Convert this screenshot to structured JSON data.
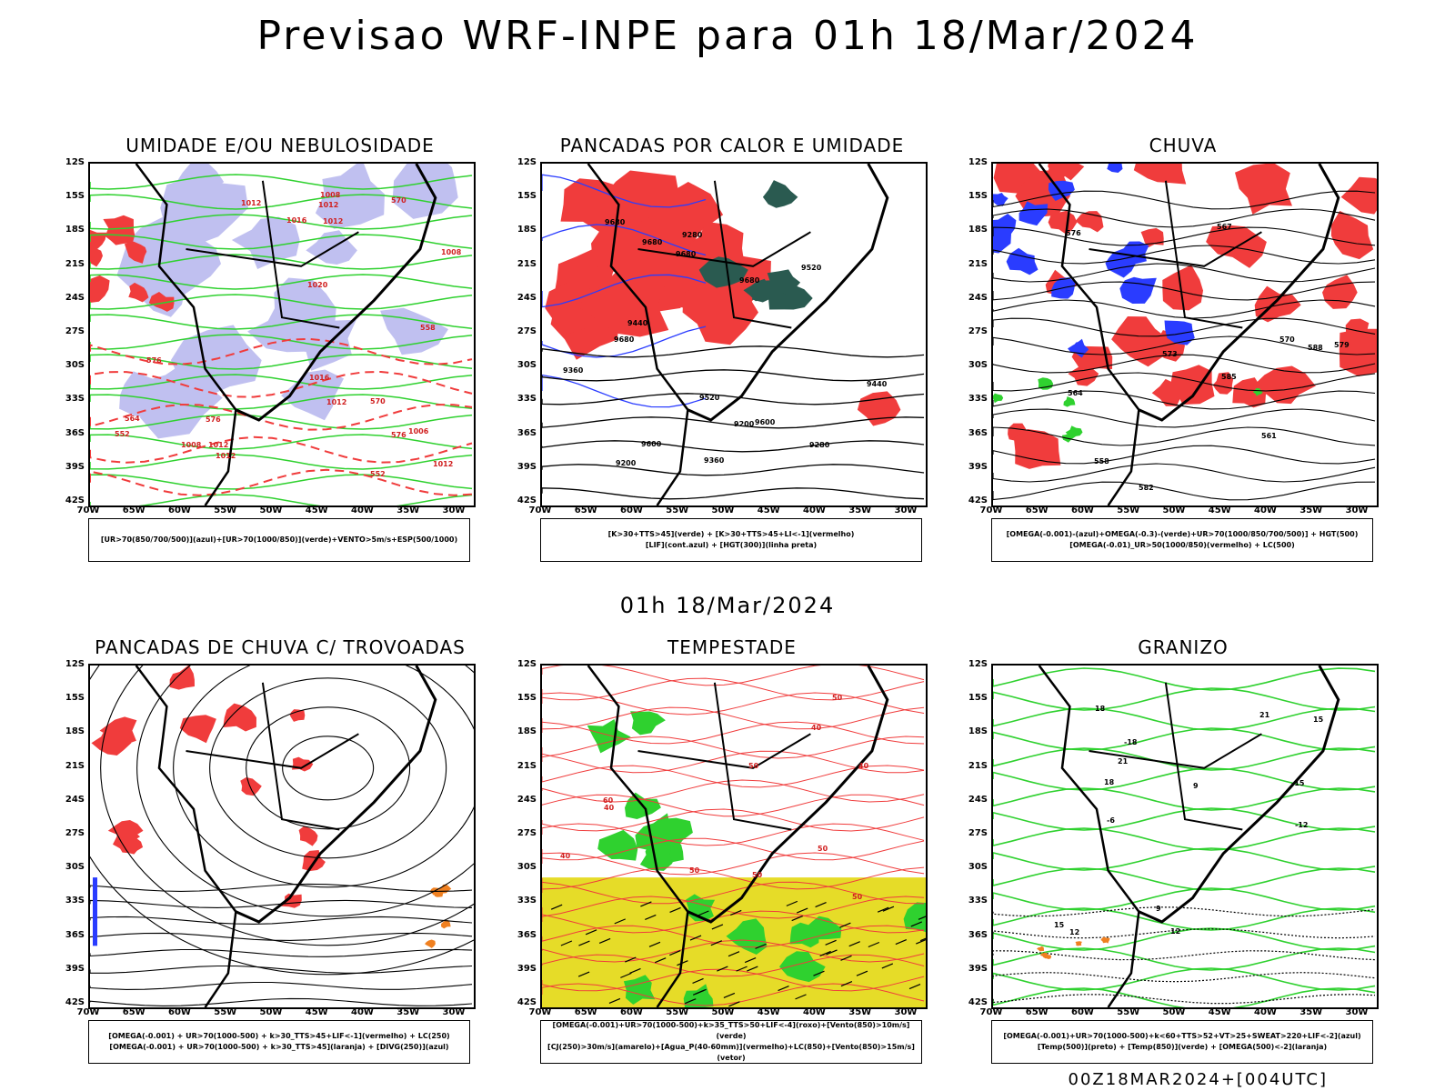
{
  "title": "Previsao WRF-INPE  para 01h 18/Mar/2024",
  "subtitle": "01h 18/Mar/2024",
  "footer": "00Z18MAR2024+[004UTC]",
  "axes": {
    "lats": [
      "12S",
      "15S",
      "18S",
      "21S",
      "24S",
      "27S",
      "30S",
      "33S",
      "36S",
      "39S",
      "42S"
    ],
    "lons": [
      "70W",
      "65W",
      "60W",
      "55W",
      "50W",
      "45W",
      "40W",
      "35W",
      "30W"
    ]
  },
  "panels": [
    {
      "title": "UMIDADE E/OU NEBULOSIDADE",
      "legend": [
        "[UR>70(850/700/500)](azul)+[UR>70(1000/850)](verde)+VENTO>5m/s+ESP(500/1000)"
      ],
      "labels": [
        "1012",
        "1012",
        "1012",
        "1012",
        "1012",
        "1012",
        "1012",
        "1016",
        "1016",
        "1020",
        "1008",
        "1008",
        "1006",
        "1008",
        "576",
        "576",
        "576",
        "570",
        "570",
        "564",
        "558",
        "552",
        "552"
      ]
    },
    {
      "title": "PANCADAS POR CALOR E UMIDADE",
      "legend": [
        "[K>30+TTS>45](verde) + [K>30+TTS>45+LI<-1](vermelho)",
        "[LIF](cont.azul) + [HGT(300)](linha preta)"
      ],
      "labels": [
        "9680",
        "9680",
        "9680",
        "9680",
        "9680",
        "9600",
        "9600",
        "9520",
        "9520",
        "9440",
        "9440",
        "9360",
        "9360",
        "9280",
        "9280",
        "9200",
        "9200"
      ]
    },
    {
      "title": "CHUVA",
      "legend": [
        "[OMEGA(-0.001)-(azul)+OMEGA(-0.3)-(verde)+UR>70(1000/850/700/500)] + HGT(500)",
        "[OMEGA(-0.01)_UR>50(1000/850)(vermelho) + LC(500)"
      ],
      "labels": [
        "588",
        "585",
        "582",
        "579",
        "576",
        "573",
        "570",
        "567",
        "564",
        "561",
        "558"
      ]
    },
    {
      "title": "PANCADAS DE CHUVA C/ TROVOADAS",
      "legend": [
        "[OMEGA(-0.001) + UR>70(1000-500) + k>30_TTS>45+LIF<-1](vermelho) + LC(250)",
        "[OMEGA(-0.001) + UR>70(1000-500) + k>30_TTS>45](laranja) + [DIVG(250)](azul)"
      ],
      "labels": []
    },
    {
      "title": "TEMPESTADE",
      "legend": [
        "[OMEGA(-0.001)+UR>70(1000-500)+k>35_TTS>50+LIF<-4](roxo)+[Vento(850)>10m/s](verde)",
        "[CJ(250)>30m/s](amarelo)+[Agua_P(40-60mm)](vermelho)+LC(850)+[Vento(850)>15m/s](vetor)"
      ],
      "labels": [
        "50",
        "50",
        "40",
        "40",
        "40",
        "50",
        "50",
        "50",
        "40",
        "50",
        "60"
      ]
    },
    {
      "title": "GRANIZO",
      "legend": [
        "[OMEGA(-0.001)+UR>70(1000-500)+k<60+TTS>52+VT>25+SWEAT>220+LIF<-2](azul)",
        "[Temp(500)](preto) + [Temp(850)](verde) + [OMEGA(500)<-2](laranja)"
      ],
      "labels": [
        "21",
        "21",
        "18",
        "18",
        "15",
        "15",
        "12",
        "12",
        "9",
        "9",
        "-12",
        "-15",
        "-18",
        "-6"
      ]
    }
  ],
  "colors": {
    "red": "#f03c3c",
    "green": "#2fd12f",
    "blue": "#2a3cff",
    "lavender": "#c0c0f0",
    "darkteal": "#2a5a50",
    "yellow": "#e6dc28",
    "orange": "#f08020",
    "black": "#000000"
  }
}
